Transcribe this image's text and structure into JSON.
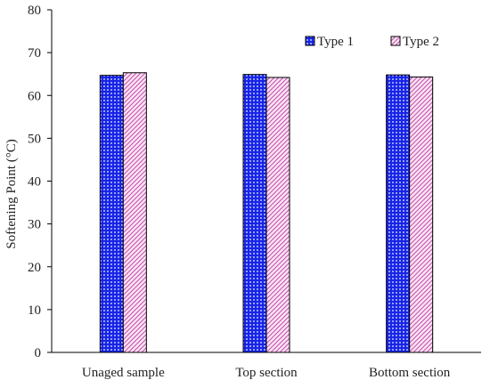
{
  "chart_data": {
    "type": "bar",
    "categories": [
      "Unaged sample",
      "Top section",
      "Bottom section"
    ],
    "series": [
      {
        "name": "Type 1",
        "values": [
          64.7,
          64.9,
          64.8
        ]
      },
      {
        "name": "Type 2",
        "values": [
          65.3,
          64.2,
          64.3
        ]
      }
    ],
    "ylabel": "Softening Point (°C)",
    "xlabel": "",
    "ylim": [
      0,
      80
    ],
    "yticks": [
      0,
      10,
      20,
      30,
      40,
      50,
      60,
      70,
      80
    ],
    "grid": false,
    "legend_position": "top-right",
    "colors": {
      "type1": "#1a23e6",
      "type2": "#f2b8e6",
      "outline": "#000000",
      "axis": "#000000"
    }
  }
}
